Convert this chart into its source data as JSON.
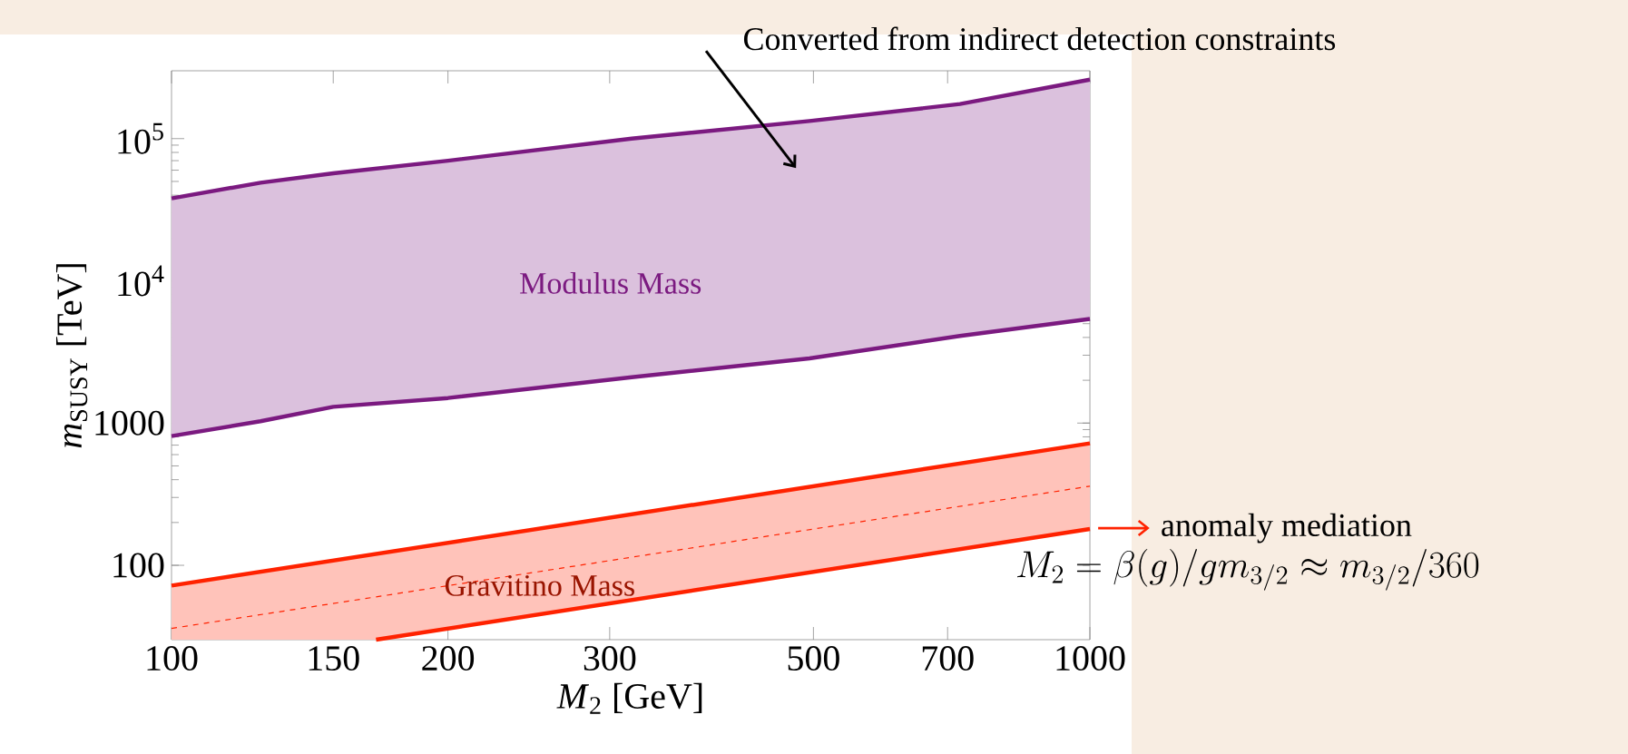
{
  "chart_data": {
    "type": "line",
    "xlabel": "*M*$_{2}$ [GeV]",
    "ylabel": "*m*$_{SUSY}$ [TeV]",
    "log": "xy",
    "xlim": [
      100,
      1000
    ],
    "ylim": [
      30,
      300000
    ],
    "xticks": [
      100,
      150,
      200,
      300,
      500,
      700,
      1000
    ],
    "yticks": [
      100,
      1000,
      {
        "value": 10000,
        "label": "10$^{4}$"
      },
      {
        "value": 100000,
        "label": "10$^{5}$"
      }
    ],
    "series": [
      {
        "color": "#7b1a80",
        "x": [
          100,
          125,
          150,
          200,
          317,
          495,
          722,
          1000
        ],
        "values": [
          38000,
          49000,
          57000,
          70000,
          100000,
          133000,
          175000,
          260000
        ],
        "lower": [
          810,
          1030,
          1300,
          1500,
          2100,
          2850,
          4100,
          5400
        ],
        "upper": [
          38000,
          49000,
          57000,
          70000,
          100000,
          133000,
          175000,
          260000
        ]
      },
      {
        "color": "#7b1a80",
        "x": [
          100,
          125,
          150,
          200,
          317,
          495,
          722,
          1000
        ],
        "values": [
          810,
          1030,
          1300,
          1500,
          2100,
          2850,
          4100,
          5400
        ]
      },
      {
        "color": "#ff2200",
        "line_style": "dashed",
        "x": [
          100,
          167,
          1000
        ],
        "values": [
          36,
          60,
          360
        ],
        "lower": [
          30,
          30,
          180
        ],
        "upper": [
          72,
          120,
          720
        ]
      },
      {
        "color": "#ff2200",
        "x": [
          100,
          1000
        ],
        "values": [
          72,
          720
        ]
      },
      {
        "color": "#ff2200",
        "x": [
          167,
          1000
        ],
        "values": [
          30,
          180
        ]
      }
    ],
    "annotations": [
      "Modulus Mass",
      "Gravitino Mass",
      "Converted from indirect detection constraints",
      "anomaly mediation",
      "M_2 = \\beta(g)/gm_{3/2} \\approx m_{3/2}/360"
    ]
  }
}
